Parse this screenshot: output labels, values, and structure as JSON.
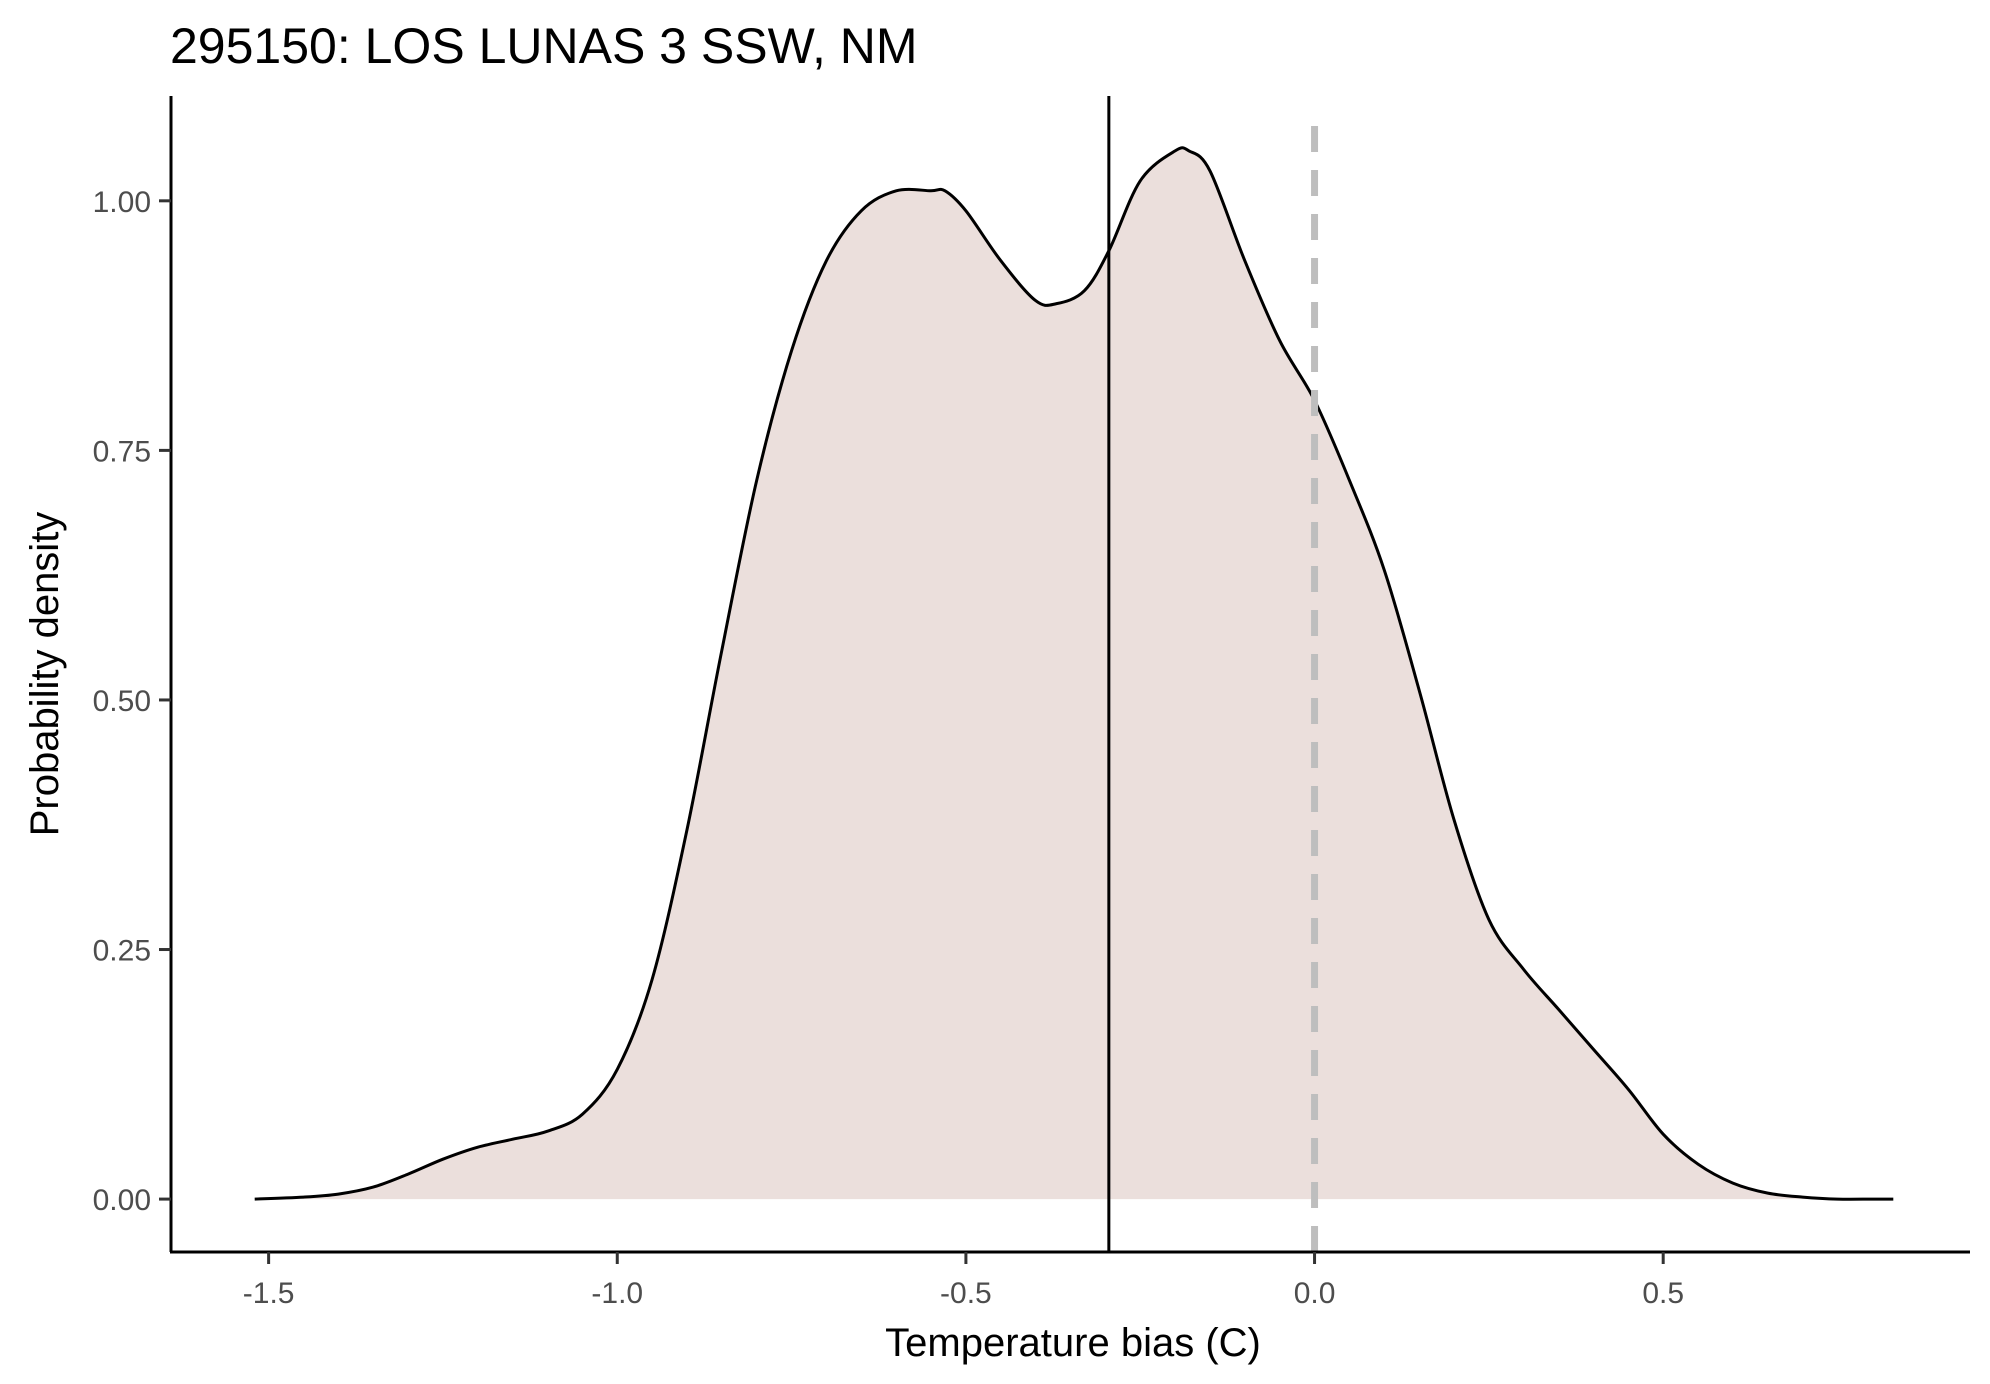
{
  "chart_data": {
    "type": "area",
    "title": "295150: LOS LUNAS 3 SSW, NM",
    "xlabel": "Temperature bias (C)",
    "ylabel": "Probability density",
    "xlim": [
      -1.64,
      0.94
    ],
    "ylim": [
      -0.053,
      1.105
    ],
    "x_ticks": [
      -1.5,
      -1.0,
      -0.5,
      0.0,
      0.5
    ],
    "x_tick_labels": [
      "-1.5",
      "-1.0",
      "-0.5",
      "0.0",
      "0.5"
    ],
    "y_ticks": [
      0.0,
      0.25,
      0.5,
      0.75,
      1.0
    ],
    "y_tick_labels": [
      "0.00",
      "0.25",
      "0.50",
      "0.75",
      "1.00"
    ],
    "grid": false,
    "legend": "none",
    "fill_color": "#ebdfdc",
    "line_color": "#000000",
    "reference_lines": [
      {
        "x": -0.295,
        "style": "solid",
        "color": "#000000"
      },
      {
        "x": 0.0,
        "style": "dashed",
        "color": "#bebebe"
      }
    ],
    "x": [
      -1.52,
      -1.45,
      -1.4,
      -1.35,
      -1.3,
      -1.25,
      -1.2,
      -1.15,
      -1.1,
      -1.05,
      -1.0,
      -0.95,
      -0.9,
      -0.85,
      -0.8,
      -0.75,
      -0.7,
      -0.65,
      -0.6,
      -0.55,
      -0.53,
      -0.5,
      -0.45,
      -0.4,
      -0.37,
      -0.33,
      -0.295,
      -0.25,
      -0.2,
      -0.18,
      -0.15,
      -0.1,
      -0.05,
      0.0,
      0.05,
      0.1,
      0.15,
      0.2,
      0.25,
      0.3,
      0.35,
      0.4,
      0.45,
      0.5,
      0.55,
      0.6,
      0.65,
      0.7,
      0.75,
      0.8,
      0.83
    ],
    "y": [
      0.0,
      0.002,
      0.005,
      0.012,
      0.025,
      0.04,
      0.052,
      0.06,
      0.068,
      0.085,
      0.13,
      0.22,
      0.37,
      0.55,
      0.72,
      0.85,
      0.94,
      0.99,
      1.01,
      1.01,
      1.01,
      0.99,
      0.94,
      0.9,
      0.897,
      0.91,
      0.95,
      1.02,
      1.05,
      1.05,
      1.03,
      0.94,
      0.86,
      0.8,
      0.72,
      0.63,
      0.51,
      0.38,
      0.28,
      0.23,
      0.19,
      0.15,
      0.11,
      0.065,
      0.035,
      0.016,
      0.006,
      0.002,
      0.0,
      0.0,
      0.0
    ]
  }
}
